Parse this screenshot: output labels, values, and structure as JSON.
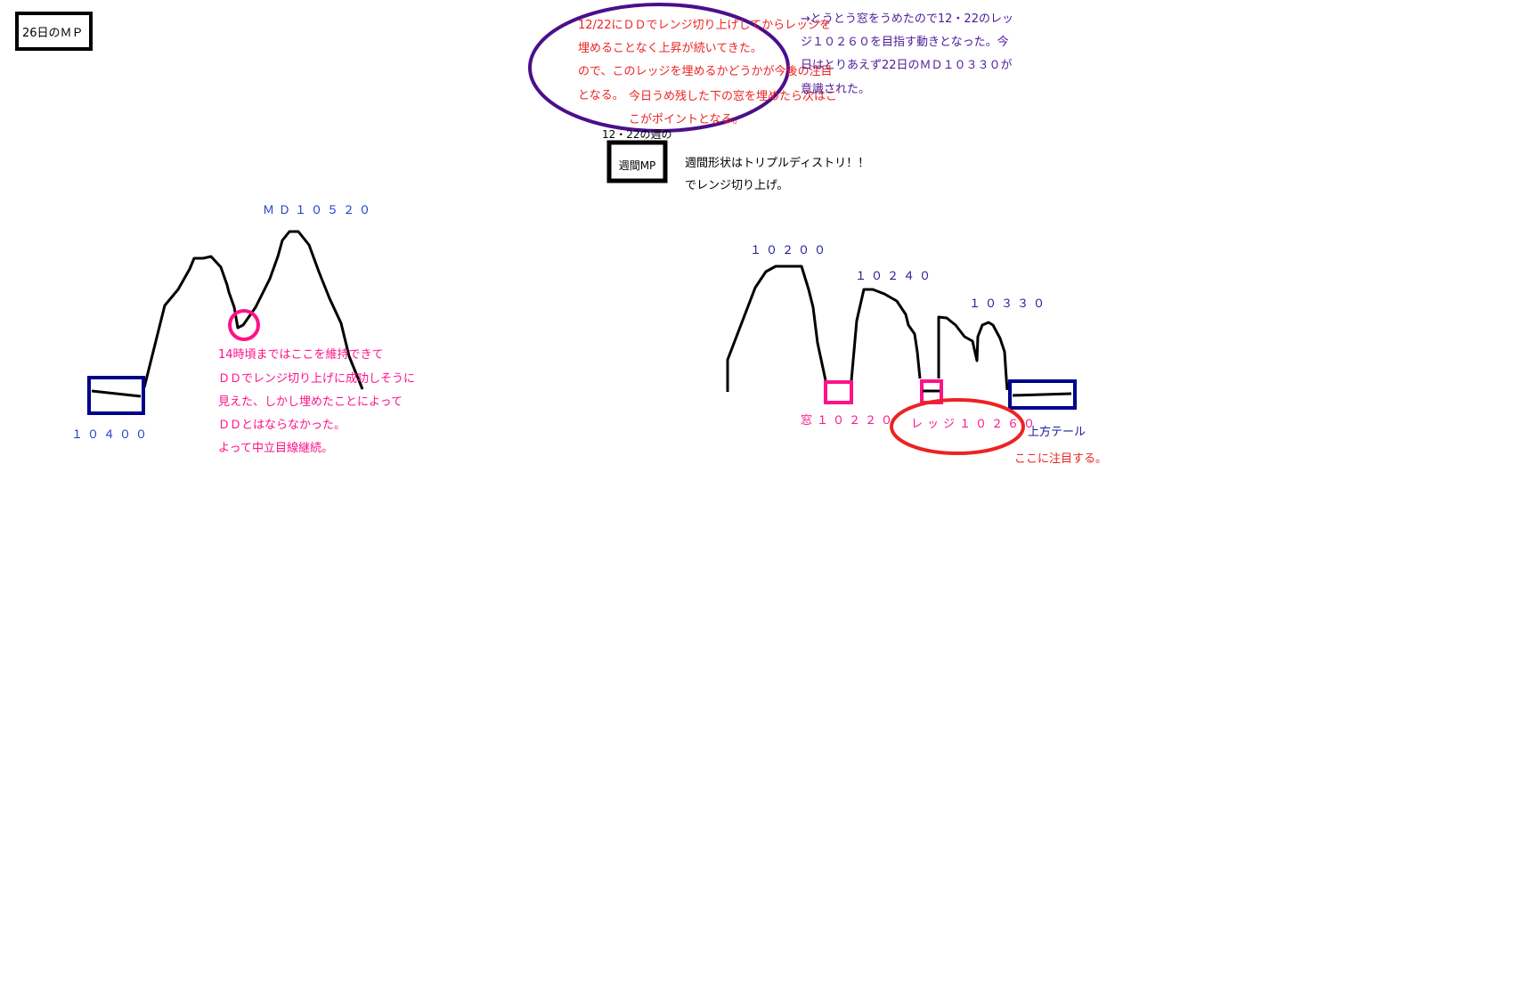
{
  "colors": {
    "curve": "#000000",
    "navy_box": "#00008b",
    "pink": "#ff1188",
    "red": "#ee2222",
    "purple": "#4b0f8c",
    "blue_label": "#1a3ccc"
  },
  "left": {
    "title_box": "26日のＭＰ",
    "md_label": "ＭＤ１０５２０",
    "low_label": "１０４００",
    "note_lines": [
      "14時頃まではここを維持できて",
      "ＤＤでレンジ切り上げに成功しそうに",
      "見えた、しかし埋めたことによって",
      "ＤＤとはならなかった。",
      "よって中立目線継続。"
    ]
  },
  "top": {
    "ellipse_lines": [
      "12/22にＤＤでレンジ切り上げしてからレッジを",
      "埋めることなく上昇が続いてきた。",
      "ので、このレッジを埋めるかどうかが今後の注目",
      "となる。",
      "今日うめ残した下の窓を埋めたら次はこ",
      "こがポイントとなる。"
    ],
    "week_caption": "12・22の週の",
    "week_box": "週間MP",
    "week_notes": [
      "週間形状はトリプルディストリ！！",
      "でレンジ切り上げ。"
    ],
    "update_lines": [
      "→とうとう窓をうめたので12・22のレッ",
      "ジ１０２６０を目指す動きとなった。今",
      "日はとりあえず22日のＭＤ１０３３０が",
      "意識された。"
    ]
  },
  "right": {
    "peak1": "１０２００",
    "peak2": "１０２４０",
    "peak3": "１０３３０",
    "window_label": "窓１０２２０",
    "ledge_label": "レッジ１０２６０",
    "tail_label": "上方テール",
    "tail_note": "ここに注目する。"
  }
}
